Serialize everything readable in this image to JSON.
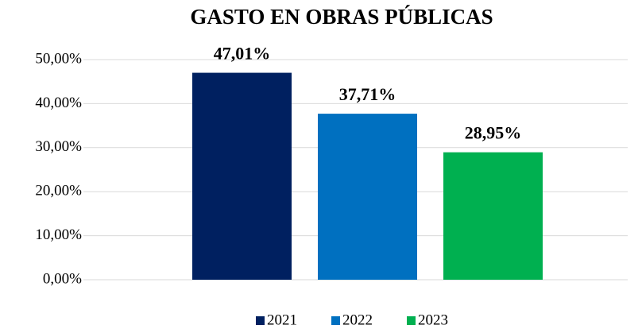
{
  "chart_data": {
    "type": "bar",
    "title": "GASTO EN OBRAS PÚBLICAS",
    "categories": [
      null
    ],
    "series": [
      {
        "name": "2021",
        "color": "#002060",
        "values": [
          47.01
        ],
        "value_labels": [
          "47,01%"
        ]
      },
      {
        "name": "2022",
        "color": "#0070c0",
        "values": [
          37.71
        ],
        "value_labels": [
          "37,71%"
        ]
      },
      {
        "name": "2023",
        "color": "#00b050",
        "values": [
          28.95
        ],
        "value_labels": [
          "28,95%"
        ]
      }
    ],
    "ylim": [
      0,
      50
    ],
    "yticks": [
      {
        "value": 0,
        "label": "0,00%"
      },
      {
        "value": 10,
        "label": "10,00%"
      },
      {
        "value": 20,
        "label": "20,00%"
      },
      {
        "value": 30,
        "label": "30,00%"
      },
      {
        "value": 40,
        "label": "40,00%"
      },
      {
        "value": 50,
        "label": "50,00%"
      }
    ],
    "grid": true,
    "legend": "bottom"
  }
}
